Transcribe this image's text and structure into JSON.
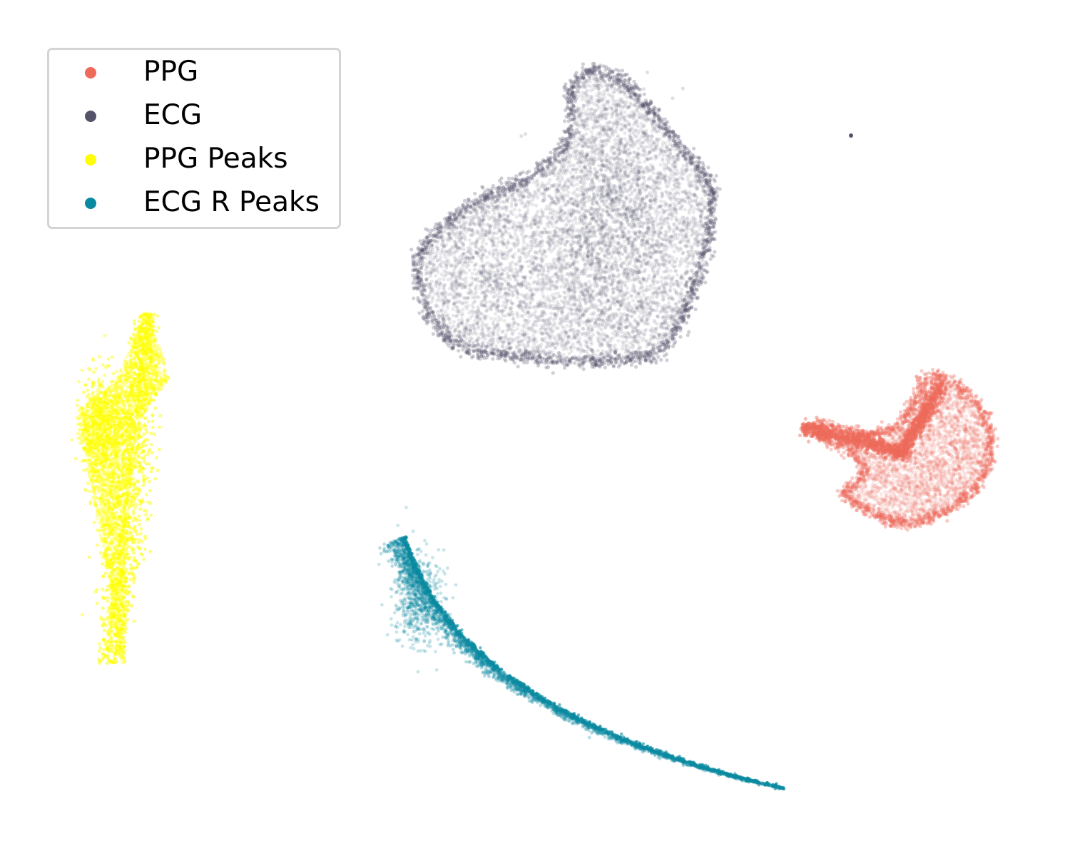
{
  "chart_data": {
    "type": "scatter",
    "title": "",
    "xlabel": "",
    "ylabel": "",
    "axes_visible": false,
    "grid": false,
    "legend_position": "top-left",
    "xlim": [
      -10,
      10
    ],
    "ylim": [
      -10,
      10
    ],
    "series": [
      {
        "name": "PPG",
        "color": "#ee6b5b",
        "shape": "star",
        "center": [
          6.3,
          -1.2
        ],
        "approx_points": 5000
      },
      {
        "name": "ECG",
        "color": "#55536b",
        "shape": "blob",
        "center": [
          0.2,
          5.4
        ],
        "approx_points": 9000
      },
      {
        "name": "PPG Peaks",
        "color": "#ffff00",
        "shape": "vertical-streak",
        "center": [
          -8.2,
          -1.5
        ],
        "approx_points": 4000
      },
      {
        "name": "ECG R Peaks",
        "color": "#0a8aa0",
        "shape": "arc",
        "center": [
          0.6,
          -6.3
        ],
        "approx_points": 4000
      }
    ]
  }
}
